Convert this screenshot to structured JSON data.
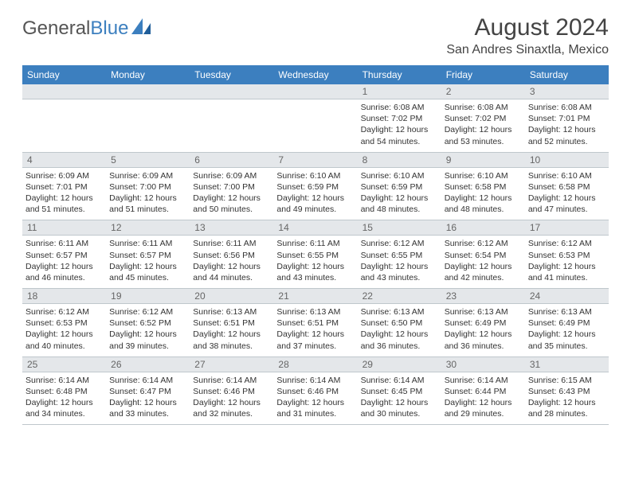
{
  "brand": {
    "part1": "General",
    "part2": "Blue"
  },
  "title": "August 2024",
  "location": "San Andres Sinaxtla, Mexico",
  "colors": {
    "header_bg": "#3c7fbf",
    "header_text": "#ffffff",
    "daynum_bg": "#e4e7ea",
    "cell_border": "#bfc7cc",
    "body_text": "#333333"
  },
  "weekdays": [
    "Sunday",
    "Monday",
    "Tuesday",
    "Wednesday",
    "Thursday",
    "Friday",
    "Saturday"
  ],
  "weeks": [
    [
      null,
      null,
      null,
      null,
      {
        "d": "1",
        "sr": "6:08 AM",
        "ss": "7:02 PM",
        "dl": "12 hours and 54 minutes."
      },
      {
        "d": "2",
        "sr": "6:08 AM",
        "ss": "7:02 PM",
        "dl": "12 hours and 53 minutes."
      },
      {
        "d": "3",
        "sr": "6:08 AM",
        "ss": "7:01 PM",
        "dl": "12 hours and 52 minutes."
      }
    ],
    [
      {
        "d": "4",
        "sr": "6:09 AM",
        "ss": "7:01 PM",
        "dl": "12 hours and 51 minutes."
      },
      {
        "d": "5",
        "sr": "6:09 AM",
        "ss": "7:00 PM",
        "dl": "12 hours and 51 minutes."
      },
      {
        "d": "6",
        "sr": "6:09 AM",
        "ss": "7:00 PM",
        "dl": "12 hours and 50 minutes."
      },
      {
        "d": "7",
        "sr": "6:10 AM",
        "ss": "6:59 PM",
        "dl": "12 hours and 49 minutes."
      },
      {
        "d": "8",
        "sr": "6:10 AM",
        "ss": "6:59 PM",
        "dl": "12 hours and 48 minutes."
      },
      {
        "d": "9",
        "sr": "6:10 AM",
        "ss": "6:58 PM",
        "dl": "12 hours and 48 minutes."
      },
      {
        "d": "10",
        "sr": "6:10 AM",
        "ss": "6:58 PM",
        "dl": "12 hours and 47 minutes."
      }
    ],
    [
      {
        "d": "11",
        "sr": "6:11 AM",
        "ss": "6:57 PM",
        "dl": "12 hours and 46 minutes."
      },
      {
        "d": "12",
        "sr": "6:11 AM",
        "ss": "6:57 PM",
        "dl": "12 hours and 45 minutes."
      },
      {
        "d": "13",
        "sr": "6:11 AM",
        "ss": "6:56 PM",
        "dl": "12 hours and 44 minutes."
      },
      {
        "d": "14",
        "sr": "6:11 AM",
        "ss": "6:55 PM",
        "dl": "12 hours and 43 minutes."
      },
      {
        "d": "15",
        "sr": "6:12 AM",
        "ss": "6:55 PM",
        "dl": "12 hours and 43 minutes."
      },
      {
        "d": "16",
        "sr": "6:12 AM",
        "ss": "6:54 PM",
        "dl": "12 hours and 42 minutes."
      },
      {
        "d": "17",
        "sr": "6:12 AM",
        "ss": "6:53 PM",
        "dl": "12 hours and 41 minutes."
      }
    ],
    [
      {
        "d": "18",
        "sr": "6:12 AM",
        "ss": "6:53 PM",
        "dl": "12 hours and 40 minutes."
      },
      {
        "d": "19",
        "sr": "6:12 AM",
        "ss": "6:52 PM",
        "dl": "12 hours and 39 minutes."
      },
      {
        "d": "20",
        "sr": "6:13 AM",
        "ss": "6:51 PM",
        "dl": "12 hours and 38 minutes."
      },
      {
        "d": "21",
        "sr": "6:13 AM",
        "ss": "6:51 PM",
        "dl": "12 hours and 37 minutes."
      },
      {
        "d": "22",
        "sr": "6:13 AM",
        "ss": "6:50 PM",
        "dl": "12 hours and 36 minutes."
      },
      {
        "d": "23",
        "sr": "6:13 AM",
        "ss": "6:49 PM",
        "dl": "12 hours and 36 minutes."
      },
      {
        "d": "24",
        "sr": "6:13 AM",
        "ss": "6:49 PM",
        "dl": "12 hours and 35 minutes."
      }
    ],
    [
      {
        "d": "25",
        "sr": "6:14 AM",
        "ss": "6:48 PM",
        "dl": "12 hours and 34 minutes."
      },
      {
        "d": "26",
        "sr": "6:14 AM",
        "ss": "6:47 PM",
        "dl": "12 hours and 33 minutes."
      },
      {
        "d": "27",
        "sr": "6:14 AM",
        "ss": "6:46 PM",
        "dl": "12 hours and 32 minutes."
      },
      {
        "d": "28",
        "sr": "6:14 AM",
        "ss": "6:46 PM",
        "dl": "12 hours and 31 minutes."
      },
      {
        "d": "29",
        "sr": "6:14 AM",
        "ss": "6:45 PM",
        "dl": "12 hours and 30 minutes."
      },
      {
        "d": "30",
        "sr": "6:14 AM",
        "ss": "6:44 PM",
        "dl": "12 hours and 29 minutes."
      },
      {
        "d": "31",
        "sr": "6:15 AM",
        "ss": "6:43 PM",
        "dl": "12 hours and 28 minutes."
      }
    ]
  ]
}
